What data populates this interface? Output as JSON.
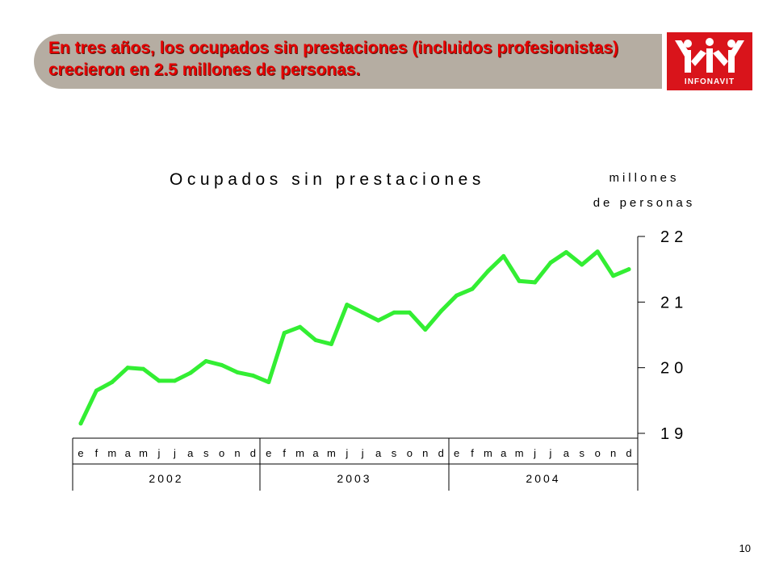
{
  "slide": {
    "title": "En tres años, los ocupados sin prestaciones (incluidos profesionistas) crecieron en 2.5 millones de personas.",
    "logo_text": "INFONAVIT",
    "page_number": "10",
    "colors": {
      "title": "#e60000",
      "title_bar": "#b5ada2",
      "logo_bg": "#d9141b",
      "line": "#33ee33"
    }
  },
  "chart_data": {
    "type": "line",
    "title": "Ocupados sin prestaciones",
    "ylabel_line1": "millones",
    "ylabel_line2": "de personas",
    "ylim": [
      19,
      22
    ],
    "yticks": [
      19,
      20,
      21,
      22
    ],
    "ytick_labels": [
      "19",
      "20",
      "21",
      "22"
    ],
    "months": [
      "e",
      "f",
      "m",
      "a",
      "m",
      "j",
      "j",
      "a",
      "s",
      "o",
      "n",
      "d",
      "e",
      "f",
      "m",
      "a",
      "m",
      "j",
      "j",
      "a",
      "s",
      "o",
      "n",
      "d",
      "e",
      "f",
      "m",
      "a",
      "m",
      "j",
      "j",
      "a",
      "s",
      "o",
      "n",
      "d"
    ],
    "years": [
      "2002",
      "2003",
      "2004"
    ],
    "series": [
      {
        "values": [
          19.15,
          19.65,
          19.78,
          20.0,
          19.98,
          19.8,
          19.8,
          19.92,
          20.1,
          20.04,
          19.93,
          19.88,
          19.78,
          20.53,
          20.62,
          20.42,
          20.36,
          20.96,
          20.84,
          20.72,
          20.84,
          20.84,
          20.58,
          20.86,
          21.1,
          21.2,
          21.47,
          21.7,
          21.32,
          21.3,
          21.6,
          21.76,
          21.57,
          21.77,
          21.4,
          21.5
        ]
      }
    ]
  }
}
